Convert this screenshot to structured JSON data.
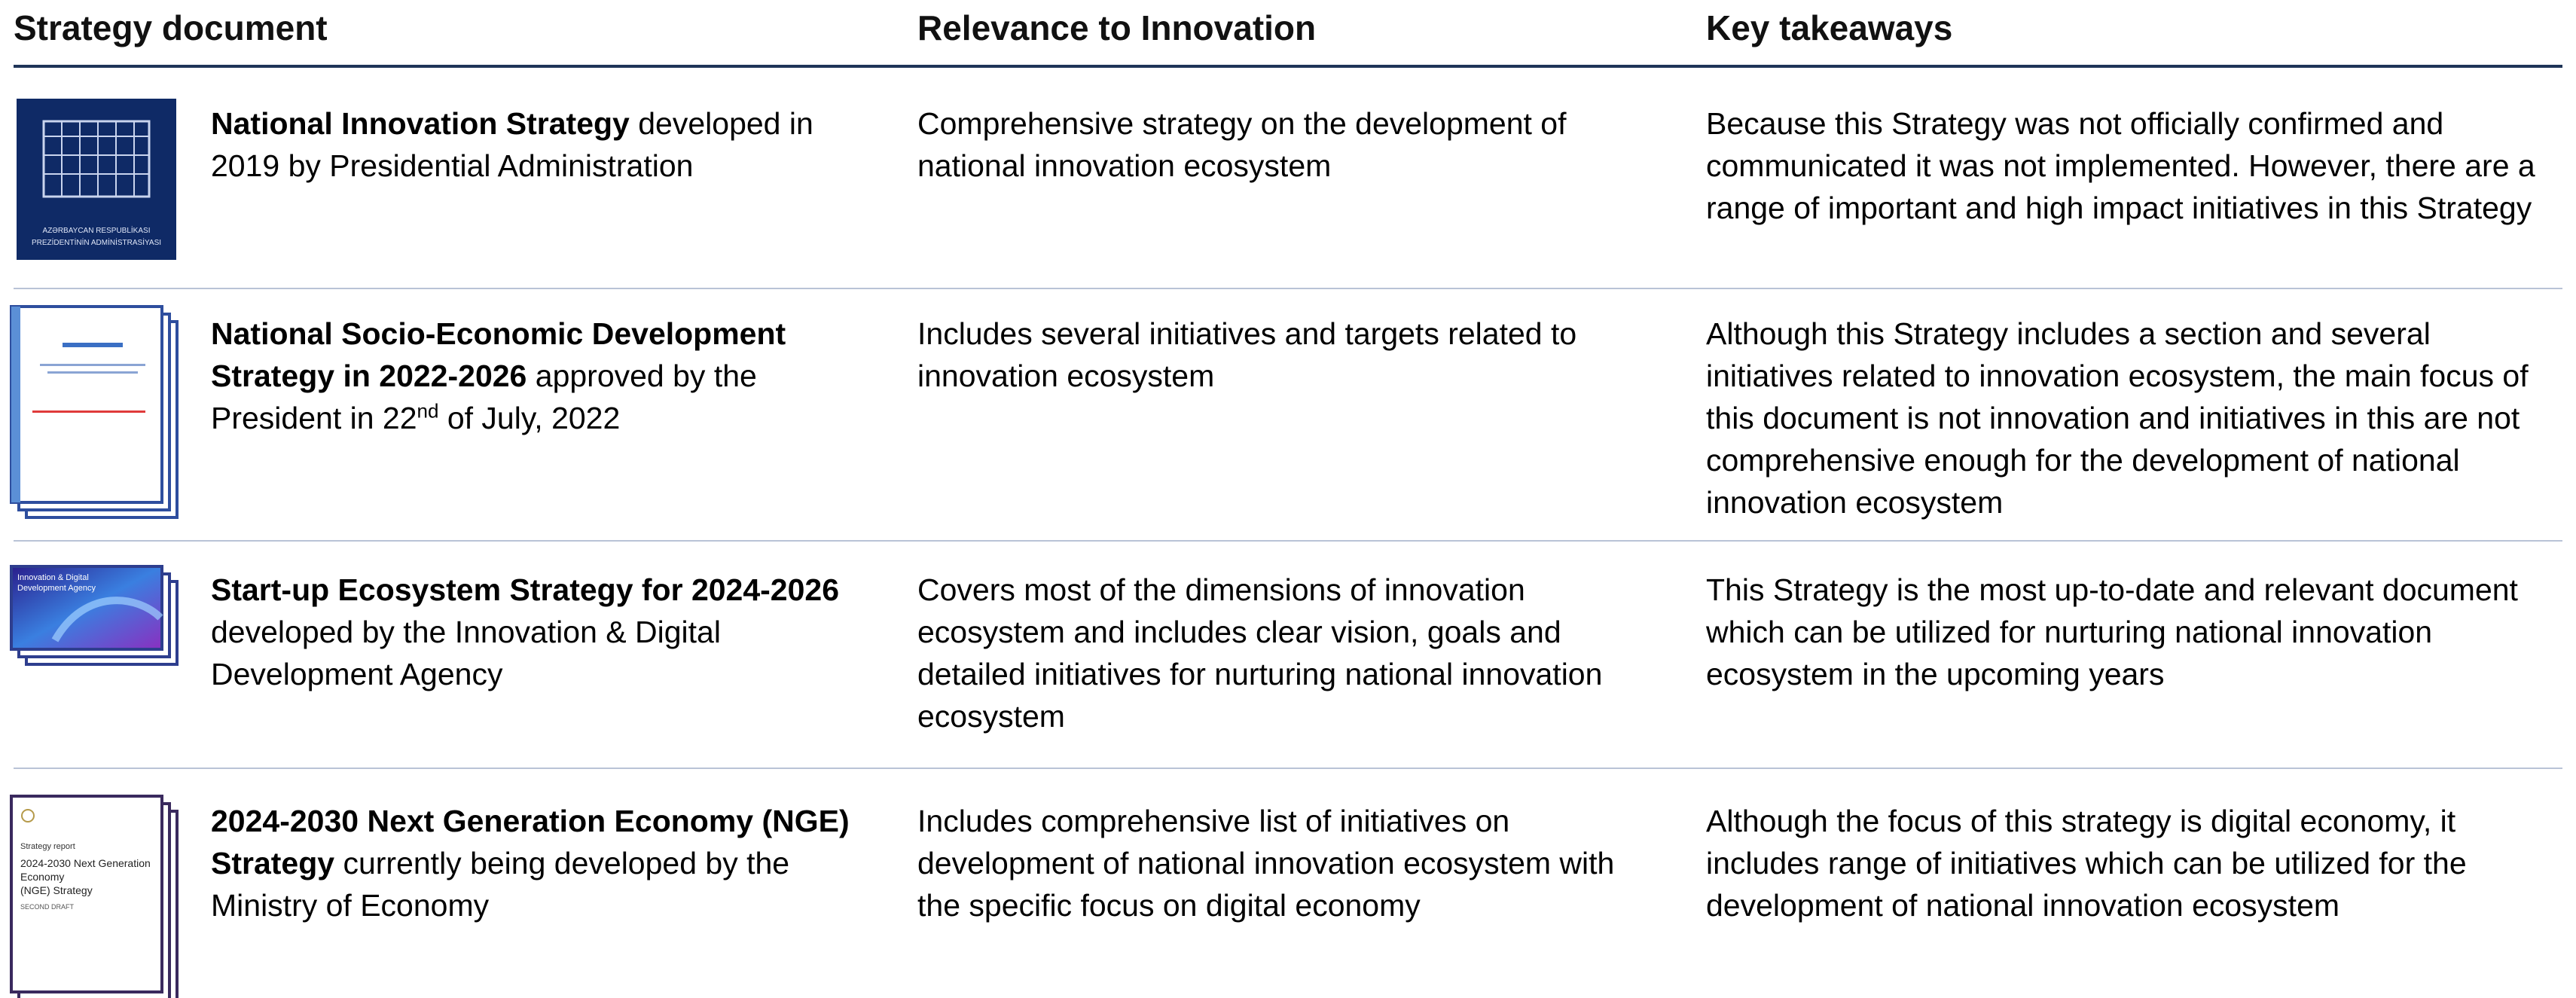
{
  "header": {
    "columns": [
      "Strategy document",
      "Relevance to Innovation",
      "Key takeaways"
    ]
  },
  "rows": [
    {
      "title": "National Innovation Strategy",
      "detail": "developed in 2019 by Presidential Administration",
      "relevance": "Comprehensive strategy on the development of national innovation ecosystem",
      "takeaways": "Because this Strategy was not officially confirmed and communicated it was not implemented. However, there are a range of important and high impact initiatives in this Strategy",
      "thumb_text": [
        "AZƏRBAYCAN RESPUBLİKASI",
        "PREZİDENTİNİN ADMİNİSTRASİYASI"
      ]
    },
    {
      "title": "National Socio-Economic Development Strategy in 2022-2026",
      "detail": "approved by the President in 22",
      "detail_sup": "nd",
      "detail_end": "of July, 2022",
      "relevance": "Includes several initiatives and targets related to innovation ecosystem",
      "takeaways": "Although this Strategy includes a section and several initiatives related to innovation ecosystem, the main focus of this document is not innovation and initiatives in this are not comprehensive enough for the development of national innovation ecosystem"
    },
    {
      "title": "Start-up Ecosystem Strategy for 2024-2026",
      "detail": "developed by the Innovation & Digital Development Agency",
      "relevance": "Covers most of the dimensions of innovation ecosystem and includes clear vision, goals and detailed initiatives for nurturing  national innovation ecosystem",
      "takeaways": "This Strategy is the most up-to-date and relevant document which can be utilized for nurturing national innovation ecosystem in the upcoming years",
      "thumb_text": [
        "Innovation & Digital",
        "Development Agency"
      ]
    },
    {
      "title": "2024-2030 Next Generation Economy (NGE) Strategy",
      "detail": "currently being developed by the Ministry of Economy",
      "relevance": "Includes comprehensive list of initiatives on development of national innovation ecosystem with the specific focus on digital economy",
      "takeaways": "Although the focus of this strategy is digital economy, it includes range of initiatives which can be utilized for the development of national innovation ecosystem",
      "thumb_text": [
        "Strategy report",
        "2024-2030 Next Generation",
        "Economy",
        "(NGE) Strategy",
        "SECOND DRAFT"
      ]
    }
  ]
}
